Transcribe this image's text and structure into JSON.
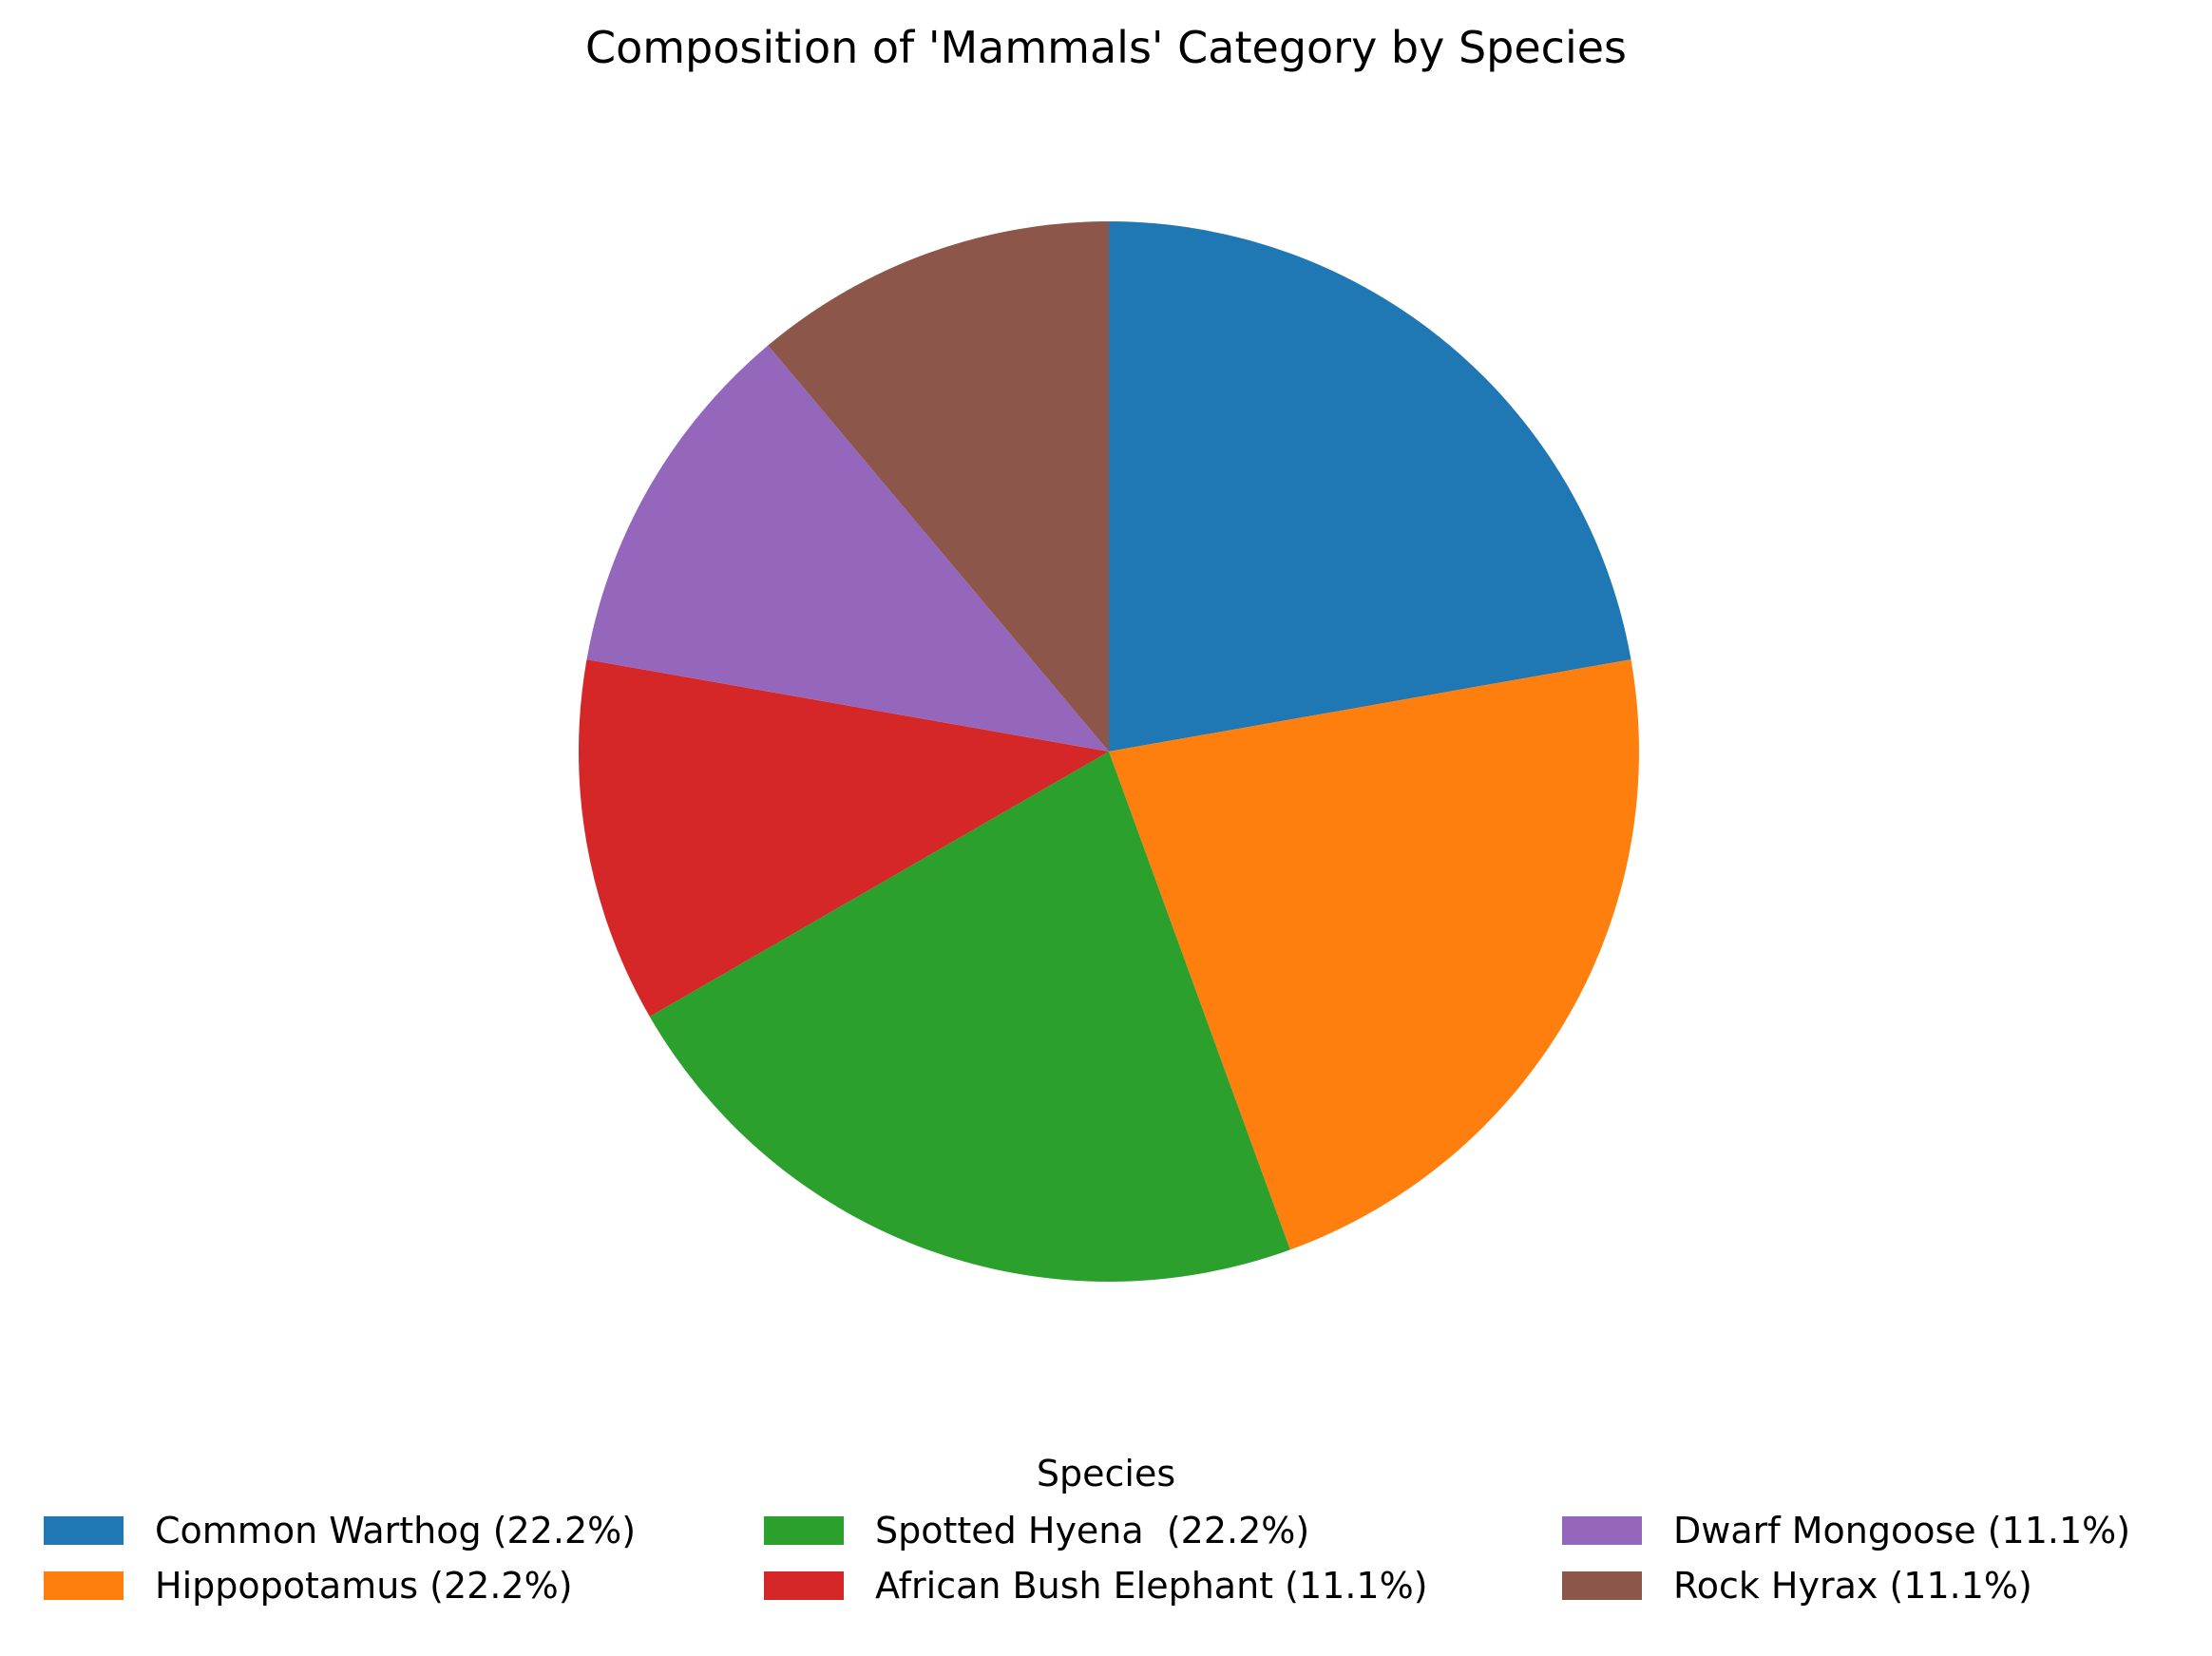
{
  "chart_data": {
    "type": "pie",
    "title": "Composition of 'Mammals' Category by Species",
    "legend_title": "Species",
    "legend_position": "bottom",
    "start_angle_deg": 90,
    "direction": "clockwise",
    "slices": [
      {
        "label": "Common Warthog (22.2%)",
        "value": 22.2,
        "color": "#1f77b4"
      },
      {
        "label": "Hippopotamus (22.2%)",
        "value": 22.2,
        "color": "#ff7f0e"
      },
      {
        "label": "Spotted Hyena  (22.2%)",
        "value": 22.2,
        "color": "#2ca02c"
      },
      {
        "label": "African Bush Elephant (11.1%)",
        "value": 11.1,
        "color": "#d62728"
      },
      {
        "label": "Dwarf Mongoose (11.1%)",
        "value": 11.1,
        "color": "#9467bd"
      },
      {
        "label": "Rock Hyrax (11.1%)",
        "value": 11.1,
        "color": "#8c564b"
      }
    ]
  }
}
